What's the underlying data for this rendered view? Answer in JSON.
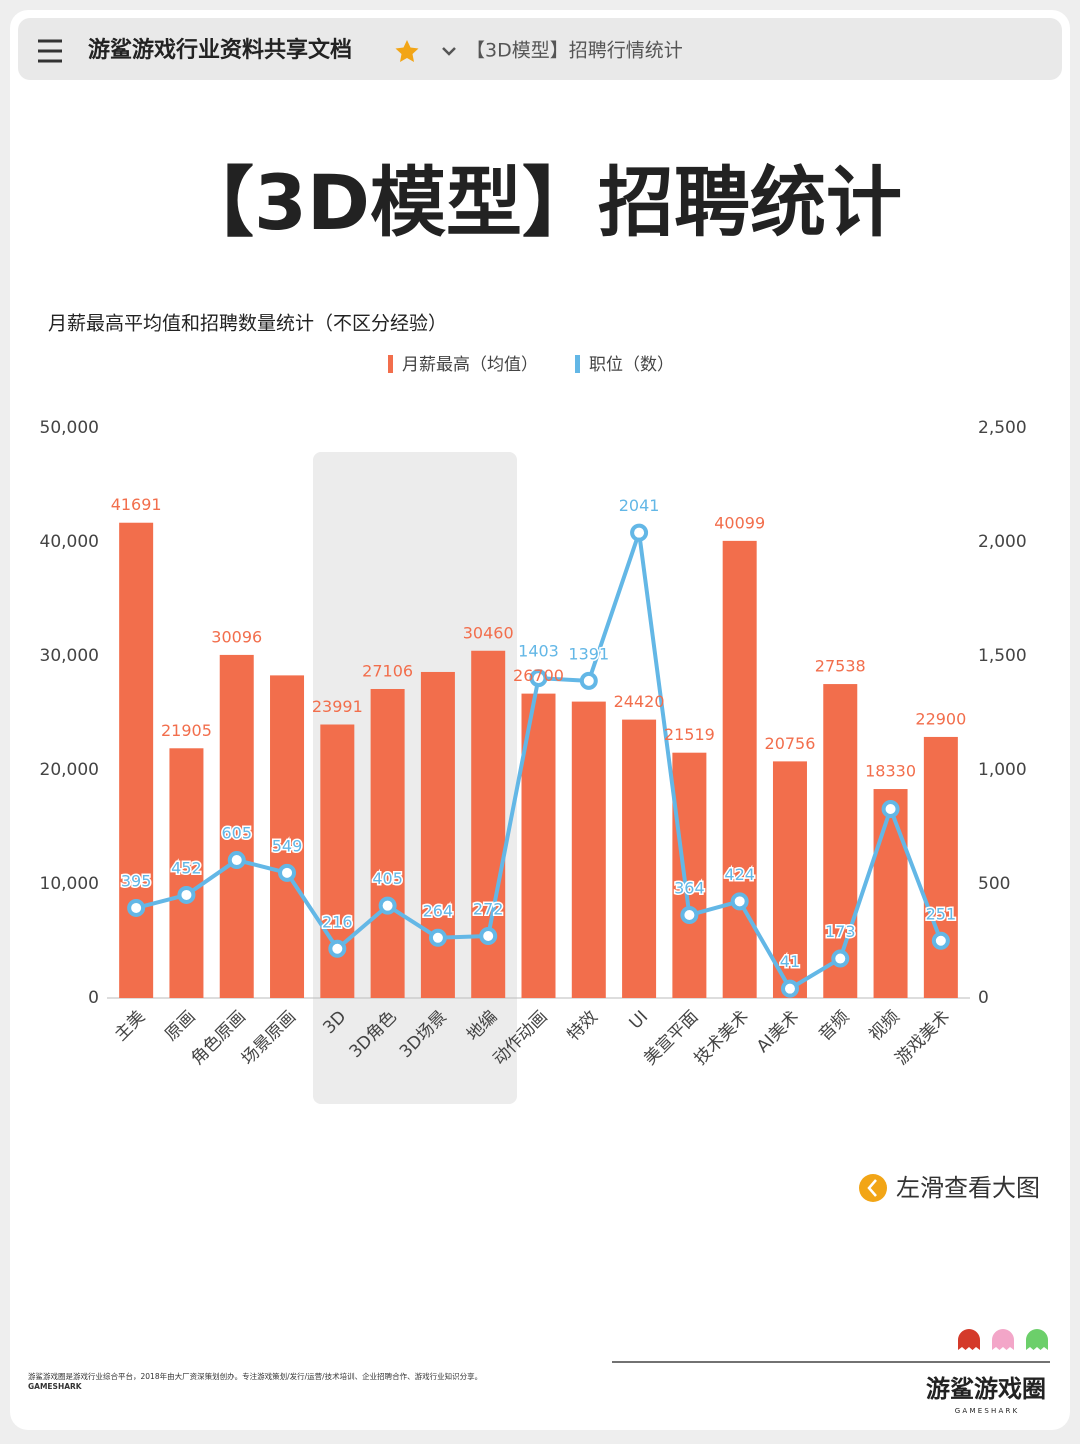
{
  "header": {
    "title": "游鲨游戏行业资料共享文档",
    "doc": "【3D模型】招聘行情统计"
  },
  "page_title": "【3D模型】招聘统计",
  "hint": "左滑查看大图",
  "footer": {
    "description": "游鲨游戏圈是游戏行业综合平台，2018年由大厂资深策划创办。专注游戏策划/发行/运营/技术培训、企业招聘合作、游戏行业知识分享。",
    "brand_small": "GAMESHARK",
    "brand": "游鲨游戏圈",
    "brand_sub": "G A M E S H A R K"
  },
  "chart_data": {
    "type": "bar-line",
    "title": "月薪最高平均值和招聘数量统计（不区分经验）",
    "categories": [
      "主美",
      "原画",
      "角色原画",
      "场景原画",
      "3D",
      "3D角色",
      "3D场景",
      "地编",
      "动作动画",
      "特效",
      "UI",
      "美宣平面",
      "技术美术",
      "AI美术",
      "音频",
      "视频",
      "游戏美术"
    ],
    "series": [
      {
        "name": "月薪最高（均值）",
        "type": "bar",
        "color": "#f26e4c",
        "values": [
          41691,
          21905,
          30096,
          28300,
          23991,
          27106,
          28600,
          30460,
          26700,
          26000,
          24420,
          21519,
          40099,
          20756,
          27538,
          18330,
          22900
        ],
        "value_labels": [
          "41691",
          "21905",
          "30096",
          null,
          "23991",
          "27106",
          null,
          "30460",
          "26700",
          null,
          "24420",
          "21519",
          "40099",
          "20756",
          "27538",
          "18330",
          "22900"
        ]
      },
      {
        "name": "职位（数）",
        "type": "line",
        "axis": "y2",
        "color": "#63b7e6",
        "values": [
          395,
          452,
          605,
          549,
          216,
          405,
          264,
          272,
          1403,
          1391,
          2041,
          364,
          424,
          41,
          173,
          829,
          251
        ],
        "value_labels": [
          "395",
          "452",
          "605",
          "549",
          "216",
          "405",
          "264",
          "272",
          "1403",
          "1391",
          "2041",
          "364",
          "424",
          "41",
          "173",
          null,
          "251"
        ]
      }
    ],
    "ylim": [
      0,
      50000
    ],
    "yticks": [
      0,
      {
        "value": 10000,
        "label": "10,000"
      },
      {
        "value": 20000,
        "label": "20,000"
      },
      {
        "value": 30000,
        "label": "30,000"
      },
      {
        "value": 40000,
        "label": "40,000"
      },
      {
        "value": 50000,
        "label": "50,000"
      }
    ],
    "y2lim": [
      0,
      2500
    ],
    "y2ticks": [
      0,
      500,
      {
        "value": 1000,
        "label": "1,000"
      },
      {
        "value": 1500,
        "label": "1,500"
      },
      {
        "value": 2000,
        "label": "2,000"
      },
      {
        "value": 2500,
        "label": "2,500"
      }
    ],
    "legend": "top"
  }
}
